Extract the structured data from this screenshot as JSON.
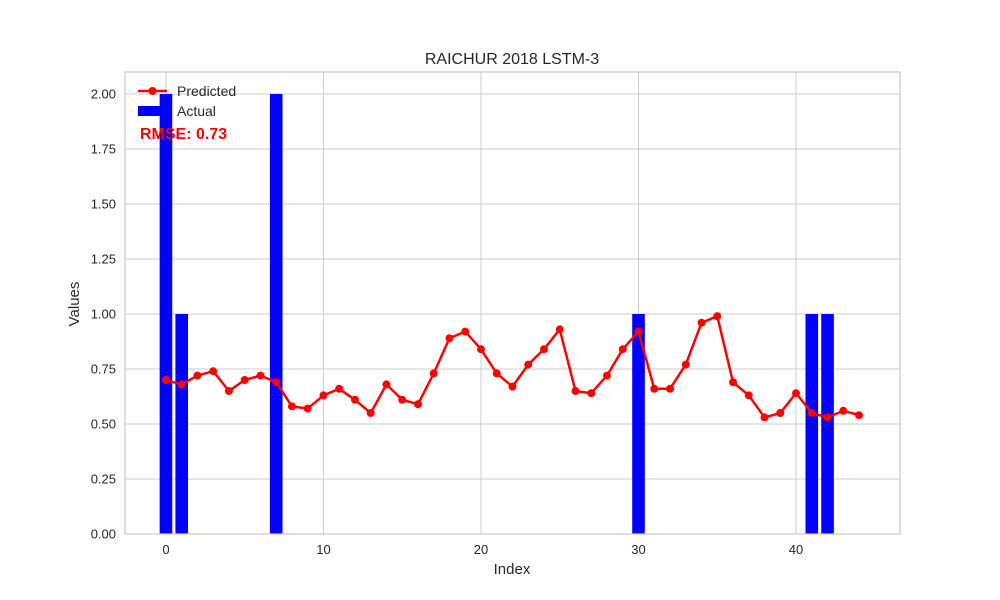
{
  "chart_data": {
    "type": "bar+line",
    "title": "RAICHUR 2018 LSTM-3",
    "xlabel": "Index",
    "ylabel": "Values",
    "xlim": [
      -2.6,
      46.6
    ],
    "ylim": [
      0,
      2.1
    ],
    "xticks": [
      0,
      10,
      20,
      30,
      40
    ],
    "yticks": [
      "0.00",
      "0.25",
      "0.50",
      "0.75",
      "1.00",
      "1.25",
      "1.50",
      "1.75",
      "2.00"
    ],
    "grid": true,
    "legend_position": "top-left",
    "annotation": "RMSE: 0.73",
    "series": [
      {
        "name": "Predicted",
        "kind": "line",
        "color": "#ff0000",
        "values": [
          0.7,
          0.68,
          0.72,
          0.74,
          0.65,
          0.7,
          0.72,
          0.69,
          0.58,
          0.57,
          0.63,
          0.66,
          0.61,
          0.55,
          0.68,
          0.61,
          0.59,
          0.73,
          0.89,
          0.92,
          0.84,
          0.73,
          0.67,
          0.77,
          0.84,
          0.93,
          0.65,
          0.64,
          0.72,
          0.84,
          0.92,
          0.66,
          0.66,
          0.77,
          0.96,
          0.99,
          0.69,
          0.63,
          0.53,
          0.55,
          0.64,
          0.55,
          0.53,
          0.56,
          0.54
        ]
      },
      {
        "name": "Actual",
        "kind": "bar",
        "color": "#0000ff",
        "values": [
          2,
          1,
          0,
          0,
          0,
          0,
          0,
          2,
          0,
          0,
          0,
          0,
          0,
          0,
          0,
          0,
          0,
          0,
          0,
          0,
          0,
          0,
          0,
          0,
          0,
          0,
          0,
          0,
          0,
          0,
          1,
          0,
          0,
          0,
          0,
          0,
          0,
          0,
          0,
          0,
          0,
          1,
          1,
          0,
          0
        ]
      }
    ]
  }
}
